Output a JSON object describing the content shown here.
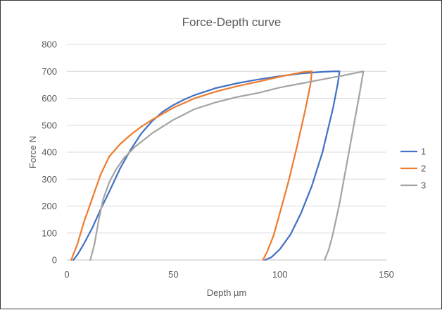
{
  "chart_data": {
    "type": "line",
    "title": "Force-Depth curve",
    "xlabel": "Depth µm",
    "ylabel": "Force N",
    "xlim": [
      0,
      150
    ],
    "ylim": [
      0,
      800
    ],
    "xticks": [
      0,
      50,
      100,
      150
    ],
    "yticks": [
      0,
      100,
      200,
      300,
      400,
      500,
      600,
      700,
      800
    ],
    "grid": "horizontal",
    "legend_position": "right",
    "series": [
      {
        "name": "1",
        "color": "#4472C4",
        "x": [
          3,
          5,
          8,
          12,
          16,
          20,
          25,
          30,
          35,
          40,
          45,
          50,
          55,
          60,
          70,
          80,
          90,
          100,
          110,
          120,
          125,
          128,
          127.3,
          125,
          120,
          115,
          110,
          105,
          100,
          96,
          93
        ],
        "y": [
          0,
          20,
          60,
          120,
          190,
          255,
          340,
          410,
          470,
          515,
          550,
          575,
          595,
          612,
          638,
          656,
          670,
          682,
          692,
          698,
          700,
          700,
          660,
          565,
          400,
          275,
          175,
          95,
          40,
          10,
          0
        ]
      },
      {
        "name": "2",
        "color": "#ED7D31",
        "x": [
          2,
          5,
          8,
          12,
          16,
          20,
          25,
          30,
          35,
          40,
          50,
          60,
          70,
          80,
          90,
          100,
          105,
          110,
          113,
          115,
          114.4,
          112,
          108,
          104,
          100,
          97,
          94,
          92
        ],
        "y": [
          0,
          60,
          140,
          230,
          320,
          385,
          430,
          465,
          495,
          520,
          565,
          600,
          625,
          645,
          662,
          680,
          688,
          696,
          699,
          700,
          655,
          560,
          420,
          290,
          175,
          90,
          30,
          0
        ]
      },
      {
        "name": "3",
        "color": "#A5A5A5",
        "x": [
          11,
          13,
          15,
          17,
          20,
          23,
          27,
          32,
          40,
          50,
          60,
          70,
          80,
          90,
          100,
          110,
          120,
          130,
          135,
          138,
          139.2,
          137,
          134,
          131,
          128,
          125,
          123,
          121
        ],
        "y": [
          0,
          60,
          150,
          225,
          290,
          335,
          380,
          420,
          470,
          520,
          560,
          585,
          605,
          620,
          640,
          655,
          670,
          685,
          693,
          698,
          700,
          600,
          470,
          340,
          210,
          100,
          40,
          0
        ]
      }
    ]
  }
}
